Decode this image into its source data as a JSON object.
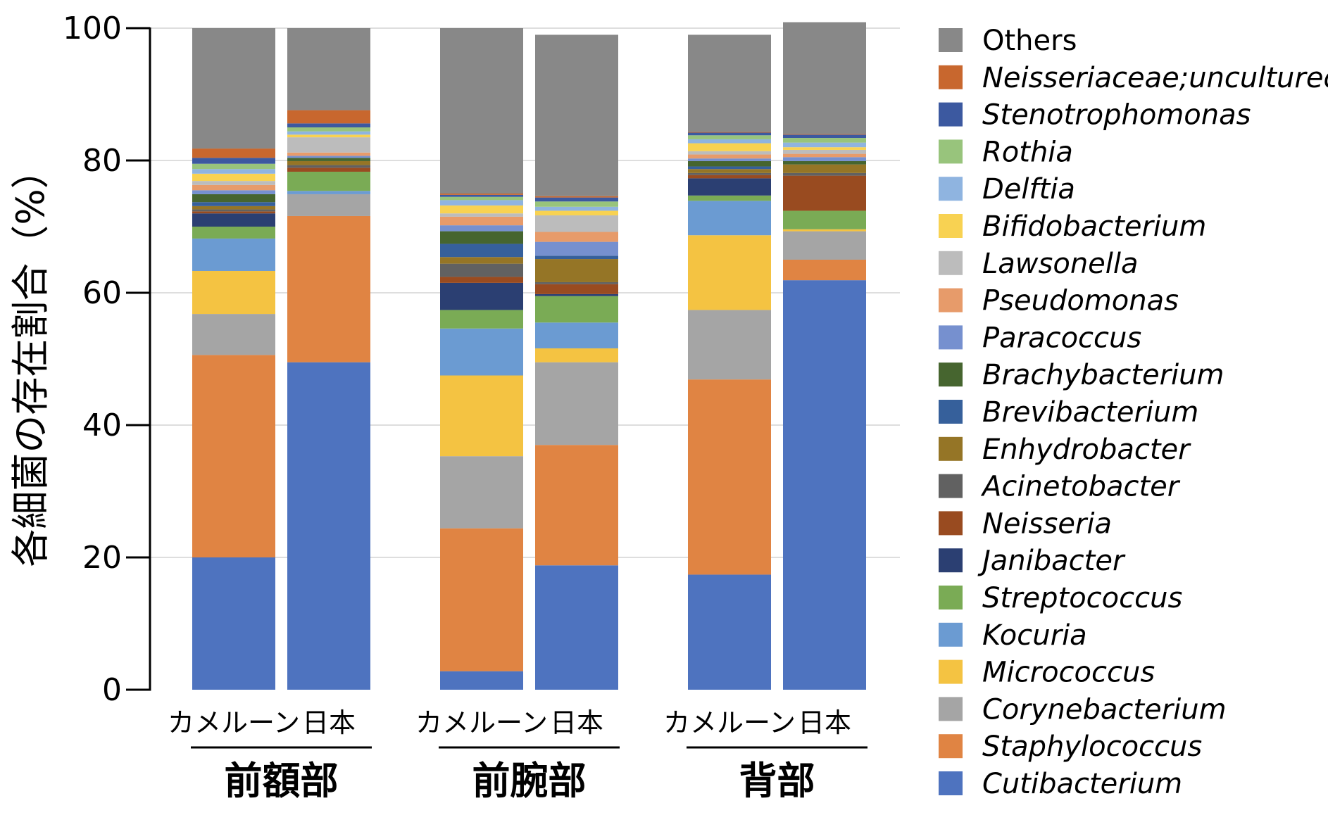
{
  "chart_data": {
    "type": "bar",
    "stacked": true,
    "ylabel": "各細菌の存在割合（%）",
    "ylim": [
      0,
      100
    ],
    "yticks": [
      0,
      20,
      40,
      60,
      80,
      100
    ],
    "grid": true,
    "legend_position": "right",
    "groups": [
      {
        "label": "前額部",
        "categories": [
          "カメルーン",
          "日本"
        ]
      },
      {
        "label": "前腕部",
        "categories": [
          "カメルーン",
          "日本"
        ]
      },
      {
        "label": "背部",
        "categories": [
          "カメルーン",
          "日本"
        ]
      }
    ],
    "categories": [
      "前額部 カメルーン",
      "前額部 日本",
      "前腕部 カメルーン",
      "前腕部 日本",
      "背部 カメルーン",
      "背部 日本"
    ],
    "series": [
      {
        "name": "Cutibacterium",
        "color": "#4e73bf",
        "values": [
          20.0,
          49.5,
          2.8,
          18.8,
          17.4,
          61.9
        ]
      },
      {
        "name": "Staphylococcus",
        "color": "#e08443",
        "values": [
          30.6,
          22.1,
          21.6,
          18.2,
          29.5,
          3.1
        ]
      },
      {
        "name": "Corynebacterium",
        "color": "#a5a5a5",
        "values": [
          6.2,
          3.3,
          10.9,
          12.5,
          10.5,
          4.3
        ]
      },
      {
        "name": "Micrococcus",
        "color": "#f4c342",
        "values": [
          6.5,
          0.0,
          12.2,
          2.1,
          11.3,
          0.3
        ]
      },
      {
        "name": "Kocuria",
        "color": "#6b9bd2",
        "values": [
          4.9,
          0.5,
          7.1,
          3.9,
          5.2,
          0.0
        ]
      },
      {
        "name": "Streptococcus",
        "color": "#7aab55",
        "values": [
          1.8,
          2.9,
          2.8,
          4.0,
          0.8,
          2.8
        ]
      },
      {
        "name": "Janibacter",
        "color": "#2b3f72",
        "values": [
          2.0,
          0.0,
          4.1,
          0.3,
          2.6,
          0.0
        ]
      },
      {
        "name": "Neisseria",
        "color": "#994b20",
        "values": [
          0.3,
          0.6,
          0.9,
          1.5,
          0.5,
          5.3
        ]
      },
      {
        "name": "Acinetobacter",
        "color": "#616161",
        "values": [
          0.3,
          0.4,
          2.0,
          0.3,
          0.3,
          0.4
        ]
      },
      {
        "name": "Enhydrobacter",
        "color": "#957526",
        "values": [
          0.5,
          0.6,
          1.0,
          3.5,
          0.6,
          1.3
        ]
      },
      {
        "name": "Brevibacterium",
        "color": "#36609b",
        "values": [
          0.6,
          0.0,
          2.0,
          0.5,
          0.4,
          0.0
        ]
      },
      {
        "name": "Brachybacterium",
        "color": "#46652f",
        "values": [
          1.2,
          0.5,
          1.9,
          0.0,
          0.8,
          0.5
        ]
      },
      {
        "name": "Paracoccus",
        "color": "#7690cf",
        "values": [
          0.6,
          0.3,
          0.9,
          2.1,
          0.4,
          0.6
        ]
      },
      {
        "name": "Pseudomonas",
        "color": "#e79b6a",
        "values": [
          0.8,
          0.5,
          1.3,
          1.5,
          0.6,
          0.5
        ]
      },
      {
        "name": "Lawsonella",
        "color": "#bcbcbc",
        "values": [
          0.6,
          2.3,
          0.5,
          2.5,
          0.5,
          0.6
        ]
      },
      {
        "name": "Bifidobacterium",
        "color": "#f8d252",
        "values": [
          1.1,
          0.4,
          1.2,
          0.7,
          1.2,
          0.4
        ]
      },
      {
        "name": "Delftia",
        "color": "#8fb4e0",
        "values": [
          0.7,
          0.5,
          0.8,
          0.6,
          0.6,
          0.7
        ]
      },
      {
        "name": "Rothia",
        "color": "#98c47c",
        "values": [
          0.8,
          0.6,
          0.5,
          0.8,
          0.6,
          0.7
        ]
      },
      {
        "name": "Stenotrophomonas",
        "color": "#3c59a0",
        "values": [
          0.9,
          0.6,
          0.3,
          0.6,
          0.4,
          0.5
        ]
      },
      {
        "name": "Neisseriaceae;uncultured",
        "color": "#c8672e",
        "values": [
          1.4,
          2.0,
          0.2,
          0.2,
          0.1,
          0.1
        ]
      },
      {
        "name": "Others",
        "color": "#888888",
        "values": [
          18.2,
          12.4,
          25.0,
          24.4,
          14.7,
          16.9
        ]
      }
    ]
  }
}
